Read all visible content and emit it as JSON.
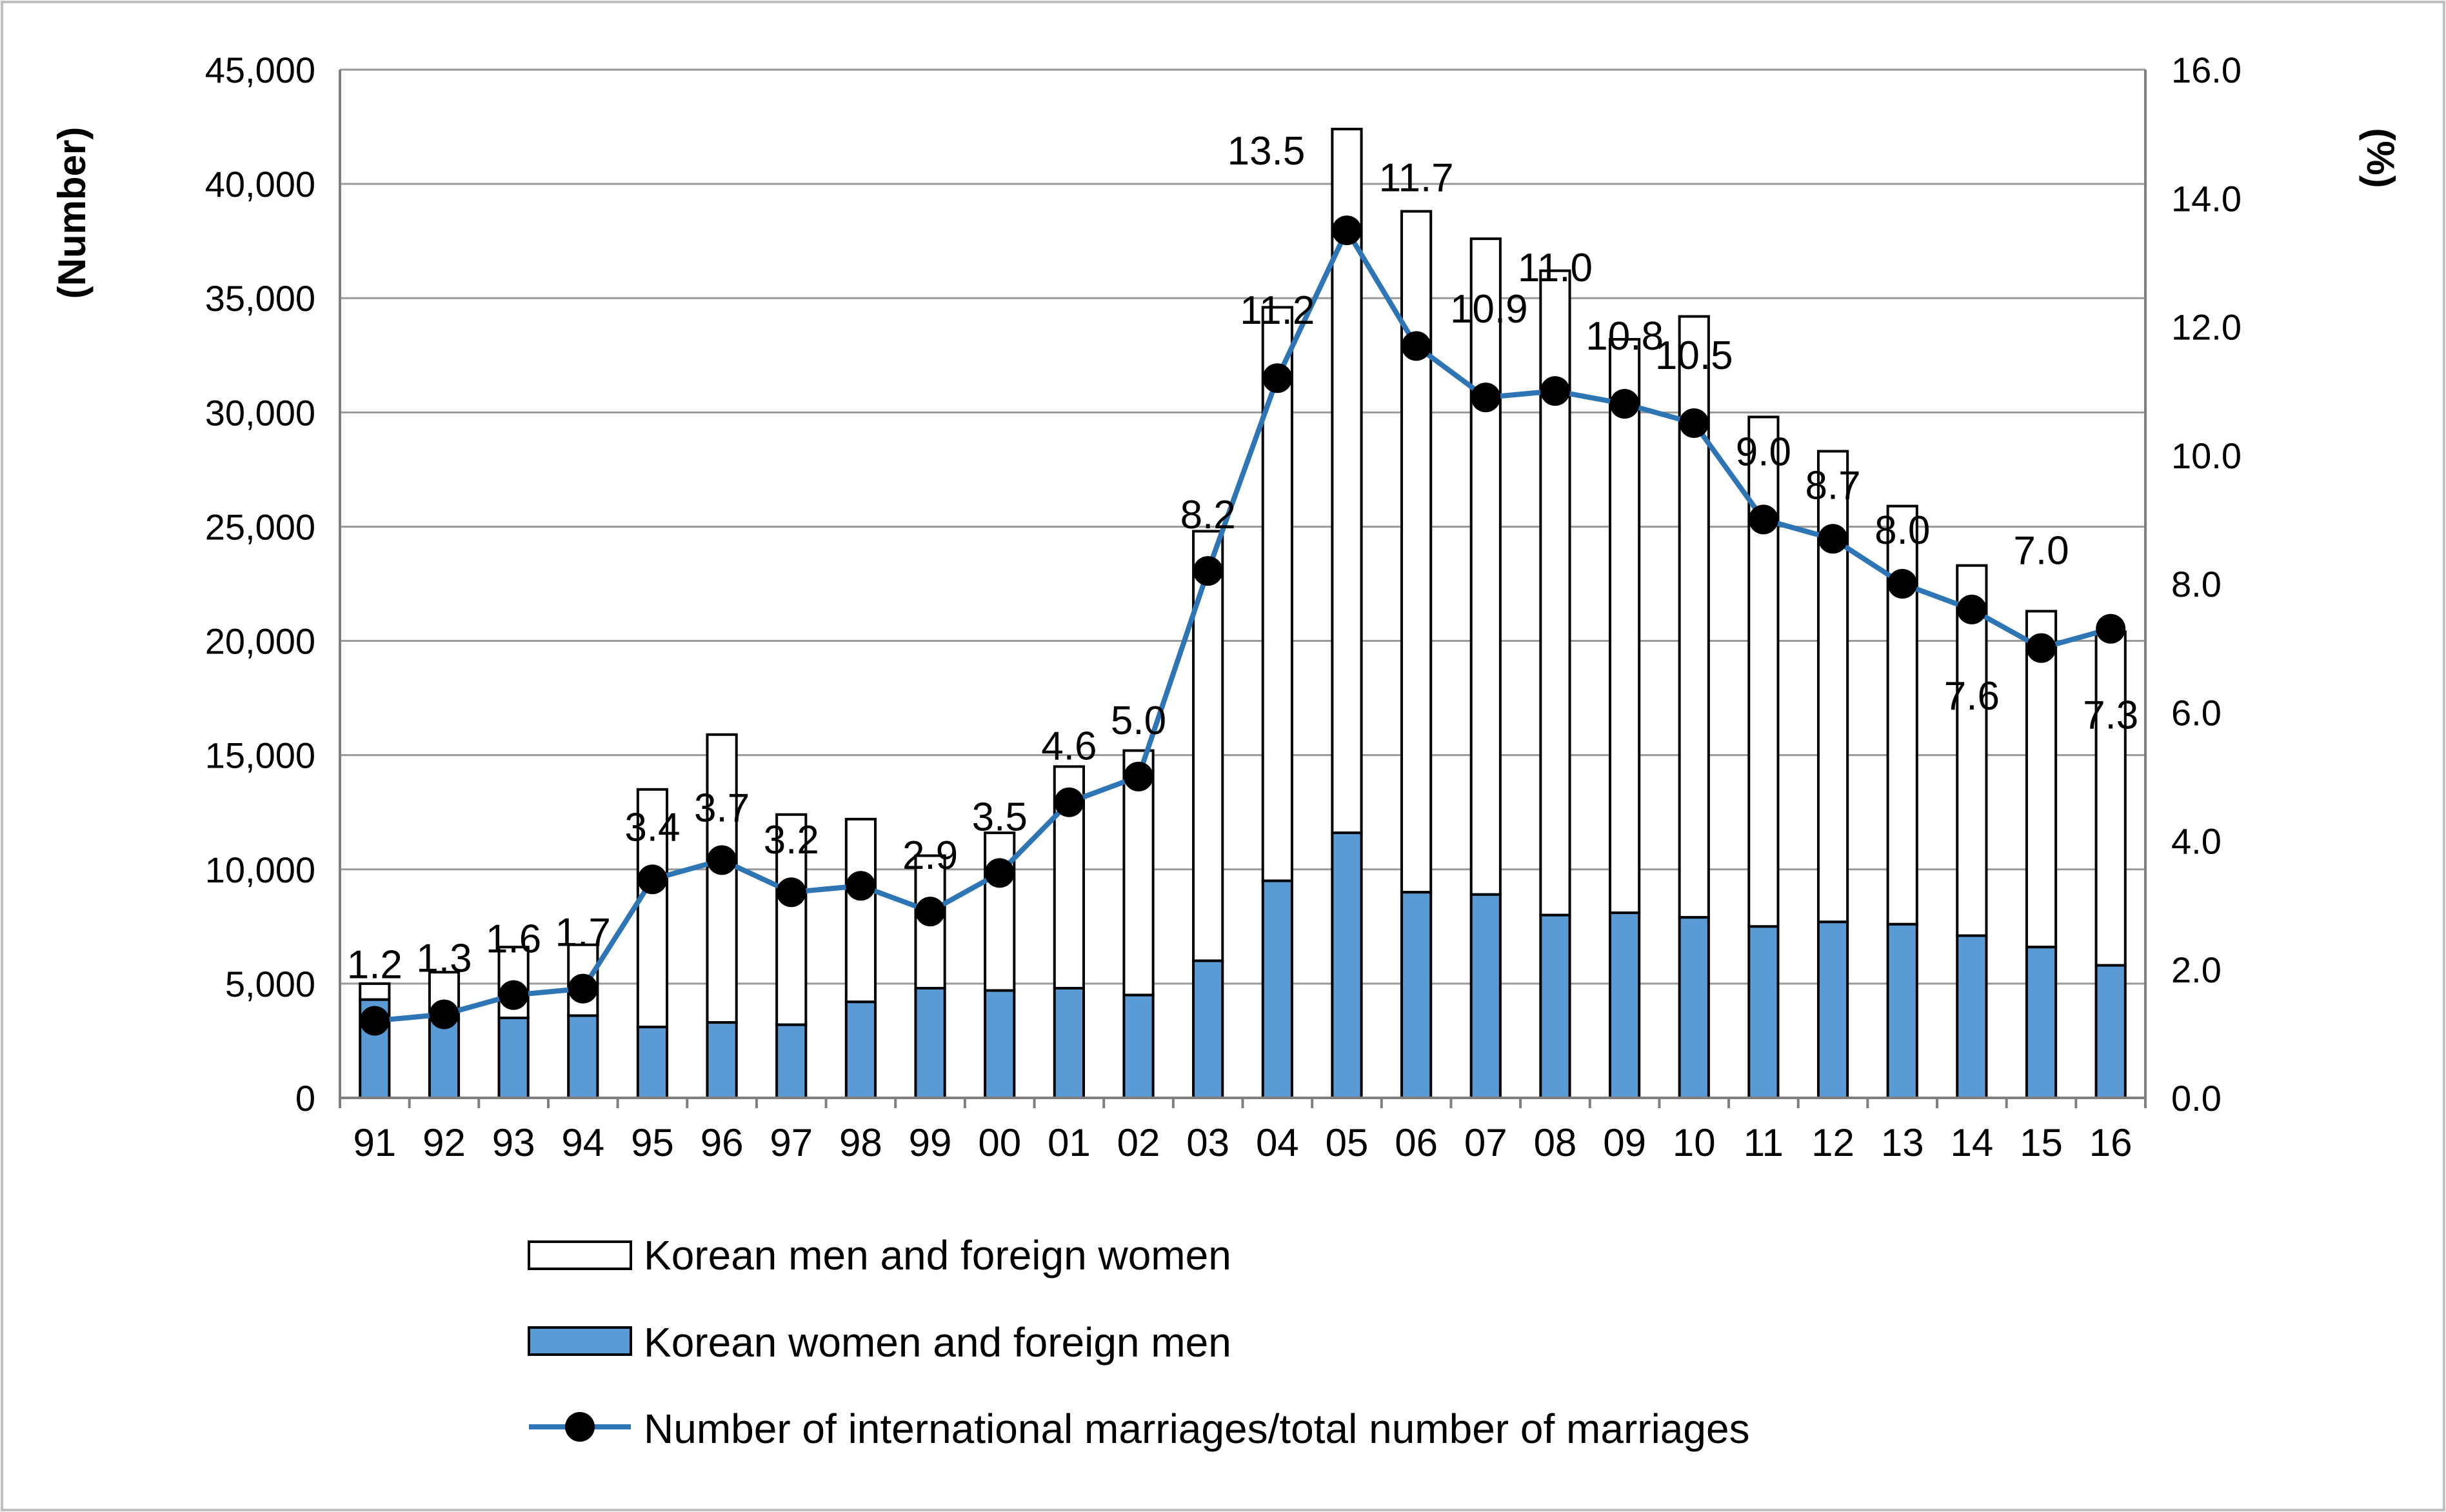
{
  "chart_data": {
    "type": "bar",
    "stacked": true,
    "categories": [
      "91",
      "92",
      "93",
      "94",
      "95",
      "96",
      "97",
      "98",
      "99",
      "00",
      "01",
      "02",
      "03",
      "04",
      "05",
      "06",
      "07",
      "08",
      "09",
      "10",
      "11",
      "12",
      "13",
      "14",
      "15",
      "16"
    ],
    "series": [
      {
        "name": "Korean women and foreign men",
        "type": "bar",
        "color": "#5b9bd5",
        "values": [
          4300,
          3500,
          3500,
          3600,
          3100,
          3300,
          3200,
          4200,
          4800,
          4700,
          4800,
          4500,
          6000,
          9500,
          11600,
          9000,
          8900,
          8000,
          8100,
          7900,
          7500,
          7700,
          7600,
          7100,
          6600,
          5800
        ]
      },
      {
        "name": "Korean men and foreign women",
        "type": "bar",
        "color": "#ffffff",
        "values": [
          700,
          2000,
          3100,
          3100,
          10400,
          12600,
          9200,
          8000,
          5800,
          6900,
          9700,
          10700,
          18800,
          25100,
          30800,
          29800,
          28700,
          28200,
          25100,
          26300,
          22300,
          20600,
          18300,
          16200,
          14700,
          14600
        ]
      },
      {
        "name": "Number of international marriages/total number of marriages",
        "type": "line",
        "axis": "right",
        "color": "#2e75b6",
        "values": [
          1.2,
          1.3,
          1.6,
          1.7,
          3.4,
          3.7,
          3.2,
          3.3,
          2.9,
          3.5,
          4.6,
          5.0,
          8.2,
          11.2,
          13.5,
          11.7,
          10.9,
          11.0,
          10.8,
          10.5,
          9.0,
          8.7,
          8.0,
          7.6,
          7.0,
          7.3
        ],
        "labels": [
          "1.2",
          "1.3",
          "1.6",
          "1.7",
          "3.4",
          "3.7",
          "3.2",
          "",
          "2.9",
          "3.5",
          "4.6",
          "5.0",
          "8.2",
          "11.2",
          "13.5",
          "11.7",
          "10.9",
          "11.0",
          "10.8",
          "10.5",
          "9.0",
          "8.7",
          "8.0",
          "7.6",
          "7.0",
          "7.3"
        ]
      }
    ],
    "ylabel": "(Number)",
    "y2label": "(%)",
    "ylim": [
      0,
      45000
    ],
    "y2lim": [
      0,
      16
    ],
    "yticks": [
      "0",
      "5,000",
      "10,000",
      "15,000",
      "20,000",
      "25,000",
      "30,000",
      "35,000",
      "40,000",
      "45,000"
    ],
    "y2ticks": [
      "0.0",
      "2.0",
      "4.0",
      "6.0",
      "8.0",
      "10.0",
      "12.0",
      "14.0",
      "16.0"
    ],
    "grid": true,
    "legend": {
      "position": "bottom",
      "entries": [
        "Korean men and foreign women",
        "Korean women and foreign men",
        "Number of international marriages/total number of marriages"
      ]
    }
  }
}
